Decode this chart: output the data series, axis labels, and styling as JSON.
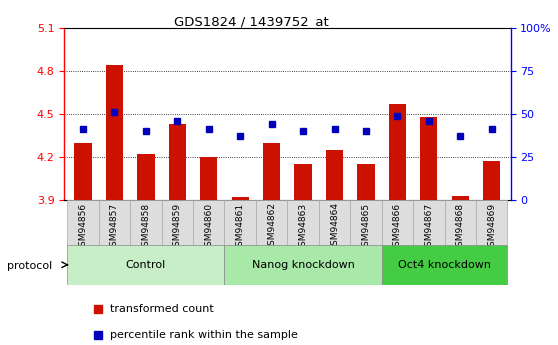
{
  "title": "GDS1824 / 1439752_at",
  "samples": [
    "GSM94856",
    "GSM94857",
    "GSM94858",
    "GSM94859",
    "GSM94860",
    "GSM94861",
    "GSM94862",
    "GSM94863",
    "GSM94864",
    "GSM94865",
    "GSM94866",
    "GSM94867",
    "GSM94868",
    "GSM94869"
  ],
  "transformed_count": [
    4.3,
    4.84,
    4.22,
    4.43,
    4.2,
    3.92,
    4.3,
    4.15,
    4.25,
    4.15,
    4.57,
    4.48,
    3.93,
    4.17
  ],
  "percentile_rank": [
    41,
    51,
    40,
    46,
    41,
    37,
    44,
    40,
    41,
    40,
    49,
    46,
    37,
    41
  ],
  "groups": [
    {
      "label": "Control",
      "start": 0,
      "end": 4,
      "color": "#c8eec8"
    },
    {
      "label": "Nanog knockdown",
      "start": 5,
      "end": 9,
      "color": "#a8e8a8"
    },
    {
      "label": "Oct4 knockdown",
      "start": 10,
      "end": 13,
      "color": "#44cc44"
    }
  ],
  "ylim_left": [
    3.9,
    5.1
  ],
  "ylim_right": [
    0,
    100
  ],
  "bar_color": "#cc1100",
  "dot_color": "#0000bb",
  "bar_bottom": 3.9,
  "left_ticks": [
    3.9,
    4.2,
    4.5,
    4.8,
    5.1
  ],
  "grid_values": [
    4.2,
    4.5,
    4.8
  ],
  "right_ticks": [
    0,
    25,
    50,
    75,
    100
  ],
  "right_tick_labels": [
    "0",
    "25",
    "50",
    "75",
    "100%"
  ],
  "xtick_bg_color": "#dddddd",
  "protocol_label": "protocol",
  "legend_items": [
    {
      "color": "#cc1100",
      "label": "transformed count"
    },
    {
      "color": "#0000bb",
      "label": "percentile rank within the sample"
    }
  ]
}
